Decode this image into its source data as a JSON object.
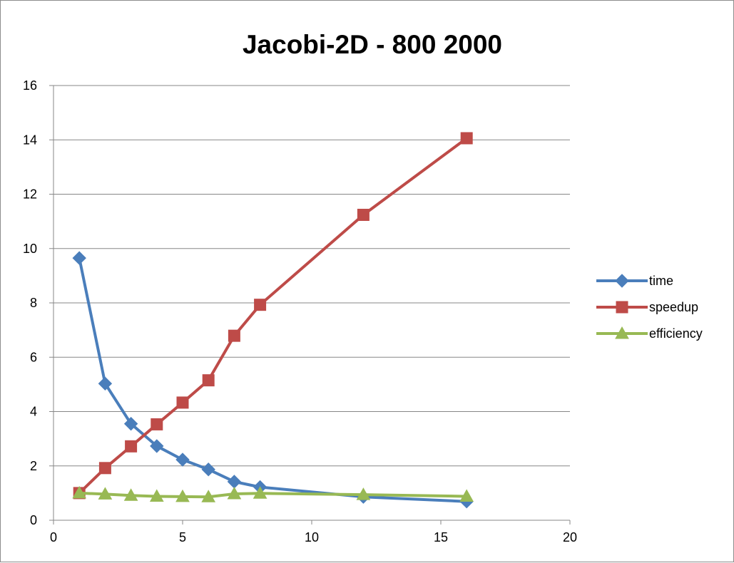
{
  "chart_data": {
    "type": "line",
    "title": "Jacobi-2D - 800 2000",
    "xlabel": "",
    "ylabel": "",
    "xlim": [
      0,
      20
    ],
    "ylim": [
      0,
      16
    ],
    "x_ticks": [
      "0",
      "5",
      "10",
      "15",
      "20"
    ],
    "y_ticks": [
      "0",
      "2",
      "4",
      "6",
      "8",
      "10",
      "12",
      "14",
      "16"
    ],
    "grid": "horizontal",
    "legend_position": "right",
    "series": [
      {
        "name": "time",
        "marker": "diamond",
        "color": "#4a7ebb",
        "x": [
          1,
          2,
          3,
          4,
          5,
          6,
          7,
          8,
          12,
          16
        ],
        "values": [
          9.65,
          5.03,
          3.55,
          2.73,
          2.23,
          1.87,
          1.42,
          1.22,
          0.86,
          0.69
        ]
      },
      {
        "name": "speedup",
        "marker": "square",
        "color": "#be4b48",
        "x": [
          1,
          2,
          3,
          4,
          5,
          6,
          7,
          8,
          12,
          16
        ],
        "values": [
          1.0,
          1.92,
          2.72,
          3.53,
          4.33,
          5.15,
          6.79,
          7.93,
          11.24,
          14.06
        ]
      },
      {
        "name": "efficiency",
        "marker": "triangle",
        "color": "#98b954",
        "x": [
          1,
          2,
          3,
          4,
          5,
          6,
          7,
          8,
          12,
          16
        ],
        "values": [
          1.0,
          0.96,
          0.91,
          0.88,
          0.87,
          0.86,
          0.97,
          0.99,
          0.94,
          0.88
        ]
      }
    ]
  }
}
